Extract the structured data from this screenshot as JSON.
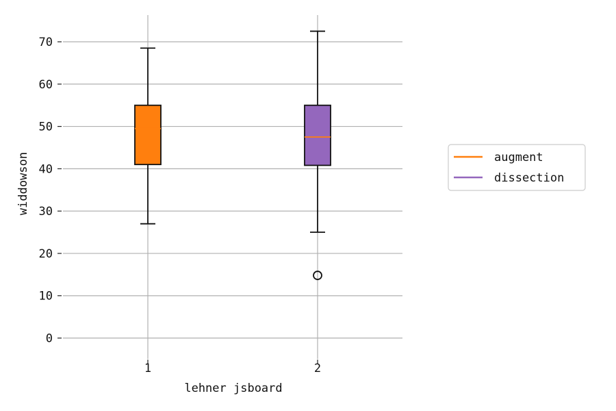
{
  "chart_data": {
    "type": "box",
    "xlabel": "lehner jsboard",
    "ylabel": "widdowson",
    "ylim": [
      -5,
      76
    ],
    "xlim": [
      0.5,
      2.5
    ],
    "yticks": [
      0,
      10,
      20,
      30,
      40,
      50,
      60,
      70
    ],
    "categories": [
      "1",
      "2"
    ],
    "grid": true,
    "legend_position": "right",
    "series": [
      {
        "name": "augment",
        "color": "#ff7f0e",
        "x": 1,
        "whisker_low": 27,
        "q1": 41,
        "median": 49.5,
        "q3": 55,
        "whisker_high": 68.5,
        "fliers": []
      },
      {
        "name": "dissection",
        "color": "#9467bd",
        "x": 2,
        "whisker_low": 25,
        "q1": 40.8,
        "median": 47.5,
        "q3": 55,
        "whisker_high": 72.5,
        "fliers": [
          14.8
        ]
      }
    ]
  }
}
